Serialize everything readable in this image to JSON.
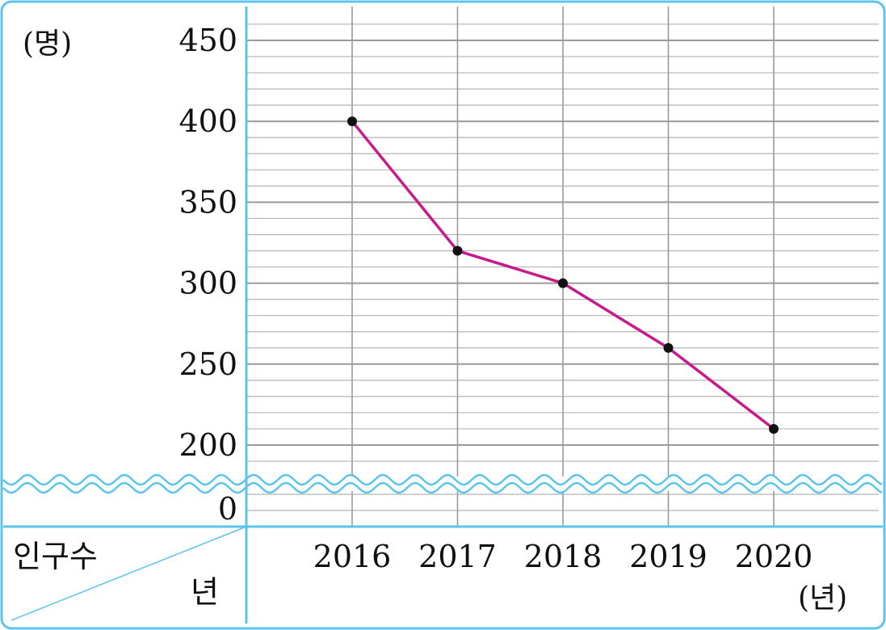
{
  "chart_data": {
    "type": "line",
    "categories": [
      "2016",
      "2017",
      "2018",
      "2019",
      "2020"
    ],
    "values": [
      400,
      320,
      300,
      260,
      210
    ],
    "y_ticks": [
      "450",
      "400",
      "350",
      "300",
      "250",
      "200"
    ],
    "y_tick_values": [
      450,
      400,
      350,
      300,
      250,
      200
    ],
    "y_zero_label": "0",
    "ylim": [
      200,
      450
    ],
    "y_unit": "(명)",
    "x_unit": "(년)",
    "table_header_top": "인구수",
    "table_header_bottom": "년",
    "axis_break": true,
    "grid": true,
    "colors": {
      "line": "#c81a8c",
      "marker": "#111111",
      "frame": "#5cc4ec",
      "grid_major": "#9a9a9a",
      "grid_minor": "#b4b4b4"
    }
  }
}
